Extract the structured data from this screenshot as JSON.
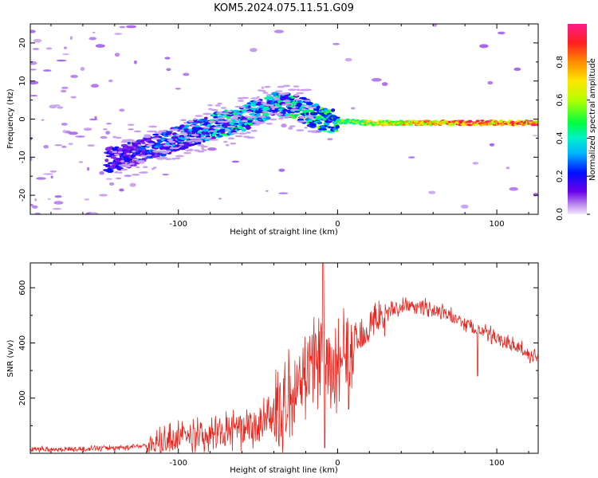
{
  "title": "KOM5.2024.075.11.51.G09",
  "colors": {
    "snr_line": "#e8241c",
    "spectrum_low": "#d8b8f4",
    "spectrum_high": "#ff1a8c"
  },
  "chart_data": [
    {
      "type": "heatmap",
      "xlabel": "Height of straight line (km)",
      "ylabel": "Frequency (Hz)",
      "xlim": [
        -193,
        126
      ],
      "ylim": [
        -25,
        25
      ],
      "x_ticks": [
        -100,
        0,
        100
      ],
      "y_ticks": [
        -20,
        -10,
        0,
        10,
        20
      ],
      "colorbar": {
        "label": "Normalized spectral amplitude",
        "range": [
          0,
          1
        ],
        "ticks": [
          "0.0",
          "0.2",
          "0.4",
          "0.6",
          "0.8"
        ],
        "colormap": "rainbow (purple to pink)"
      },
      "ridge": {
        "x": [
          -140,
          -120,
          -100,
          -80,
          -60,
          -45,
          -35,
          -25,
          -15,
          -5,
          0,
          20,
          40,
          60,
          80,
          100,
          126
        ],
        "y": [
          -10.5,
          -8,
          -5,
          -2,
          0,
          3,
          4,
          3,
          1,
          -1,
          -0.5,
          -1,
          -1,
          -1,
          -1,
          -1,
          -1
        ],
        "amplitude": [
          0.2,
          0.25,
          0.35,
          0.4,
          0.45,
          0.4,
          0.45,
          0.5,
          0.55,
          0.5,
          0.55,
          0.7,
          0.75,
          0.85,
          0.9,
          0.95,
          0.95
        ]
      }
    },
    {
      "type": "line",
      "xlabel": "Height of straight line (km)",
      "ylabel": "SNR (v/v)",
      "xlim": [
        -193,
        126
      ],
      "ylim": [
        0,
        690
      ],
      "x_ticks": [
        -100,
        0,
        100
      ],
      "y_ticks": [
        200,
        400,
        600
      ],
      "series": [
        {
          "x": [
            -193,
            -170,
            -150,
            -130,
            -120,
            -110,
            -100,
            -90,
            -80,
            -70,
            -60,
            -50,
            -40,
            -35,
            -30,
            -25,
            -20,
            -15,
            -10,
            -5,
            0,
            5,
            10,
            15,
            20,
            30,
            40,
            50,
            60,
            70,
            80,
            90,
            100,
            110,
            120,
            126
          ],
          "y": [
            15,
            15,
            18,
            22,
            30,
            40,
            55,
            60,
            70,
            80,
            85,
            100,
            115,
            150,
            200,
            260,
            300,
            330,
            360,
            300,
            320,
            360,
            390,
            430,
            460,
            510,
            530,
            540,
            520,
            500,
            470,
            440,
            420,
            390,
            360,
            340
          ]
        }
      ],
      "annotations": {
        "peak": {
          "x": -9,
          "y": 690
        },
        "dips": [
          {
            "x": -8,
            "y": 20
          },
          {
            "x": 7,
            "y": 160
          },
          {
            "x": 88,
            "y": 280
          }
        ]
      }
    }
  ]
}
